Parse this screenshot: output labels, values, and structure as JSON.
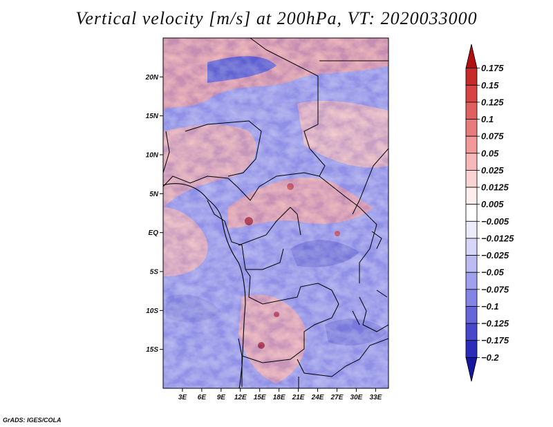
{
  "title": "Vertical velocity [m/s] at 200hPa, VT: 2020033000",
  "footer": "GrADS: IGES/COLA",
  "map": {
    "lon_range": [
      0,
      35
    ],
    "lat_range": [
      -20,
      25
    ],
    "lat_ticks": [
      "20N",
      "15N",
      "10N",
      "5N",
      "EQ",
      "5S",
      "10S",
      "15S"
    ],
    "lon_ticks": [
      "3E",
      "6E",
      "9E",
      "12E",
      "15E",
      "18E",
      "21E",
      "24E",
      "27E",
      "30E",
      "33E"
    ]
  },
  "colorbar": {
    "labels": [
      "0.175",
      "0.15",
      "0.125",
      "0.1",
      "0.075",
      "0.05",
      "0.025",
      "0.0125",
      "0.005",
      "−0.005",
      "−0.0125",
      "−0.025",
      "−0.05",
      "−0.075",
      "−0.1",
      "−0.125",
      "−0.175",
      "−0.2"
    ],
    "colors": [
      "#b01010",
      "#c82a2a",
      "#d84444",
      "#e06060",
      "#e87c7c",
      "#f09a9a",
      "#f6b8b8",
      "#fad4d4",
      "#fdeeee",
      "#ffffff",
      "#ececfb",
      "#d6d6f8",
      "#bcbcf2",
      "#a0a0ec",
      "#8484e4",
      "#6666da",
      "#4848cc",
      "#2c2cba",
      "#16169e"
    ]
  }
}
